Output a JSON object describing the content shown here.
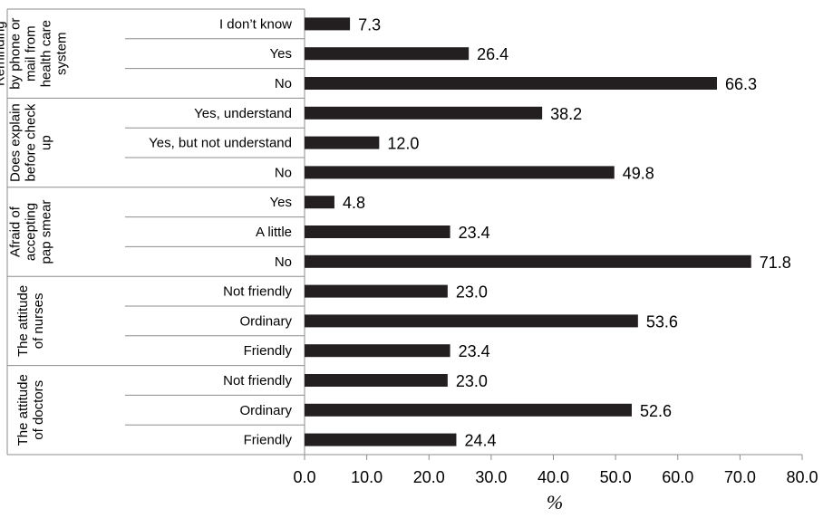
{
  "chart_data": {
    "type": "bar",
    "orientation": "horizontal",
    "xlabel": "%",
    "xlim": [
      0,
      80
    ],
    "xticks": [
      "0.0",
      "10.0",
      "20.0",
      "30.0",
      "40.0",
      "50.0",
      "60.0",
      "70.0",
      "80.0"
    ],
    "grid": false,
    "bar_color": "#231f20",
    "groups": [
      {
        "label": [
          "Reminding",
          "by phone or",
          "mail from",
          "health care",
          "system"
        ],
        "bars": [
          {
            "category": "I don’t know",
            "value": 7.3,
            "value_label": "7.3"
          },
          {
            "category": "Yes",
            "value": 26.4,
            "value_label": "26.4"
          },
          {
            "category": "No",
            "value": 66.3,
            "value_label": "66.3"
          }
        ]
      },
      {
        "label": [
          "Does explain",
          "before check",
          "up"
        ],
        "bars": [
          {
            "category": "Yes, understand",
            "value": 38.2,
            "value_label": "38.2"
          },
          {
            "category": "Yes, but not understand",
            "value": 12.0,
            "value_label": "12.0"
          },
          {
            "category": "No",
            "value": 49.8,
            "value_label": "49.8"
          }
        ]
      },
      {
        "label": [
          "Afraid of",
          "accepting",
          "pap smear"
        ],
        "bars": [
          {
            "category": "Yes",
            "value": 4.8,
            "value_label": "4.8"
          },
          {
            "category": "A little",
            "value": 23.4,
            "value_label": "23.4"
          },
          {
            "category": "No",
            "value": 71.8,
            "value_label": "71.8"
          }
        ]
      },
      {
        "label": [
          "The attitude",
          "of nurses"
        ],
        "bars": [
          {
            "category": "Not friendly",
            "value": 23.0,
            "value_label": "23.0"
          },
          {
            "category": "Ordinary",
            "value": 53.6,
            "value_label": "53.6"
          },
          {
            "category": "Friendly",
            "value": 23.4,
            "value_label": "23.4"
          }
        ]
      },
      {
        "label": [
          "The attitude",
          "of doctors"
        ],
        "bars": [
          {
            "category": "Not friendly",
            "value": 23.0,
            "value_label": "23.0"
          },
          {
            "category": "Ordinary",
            "value": 52.6,
            "value_label": "52.6"
          },
          {
            "category": "Friendly",
            "value": 24.4,
            "value_label": "24.4"
          }
        ]
      }
    ]
  }
}
